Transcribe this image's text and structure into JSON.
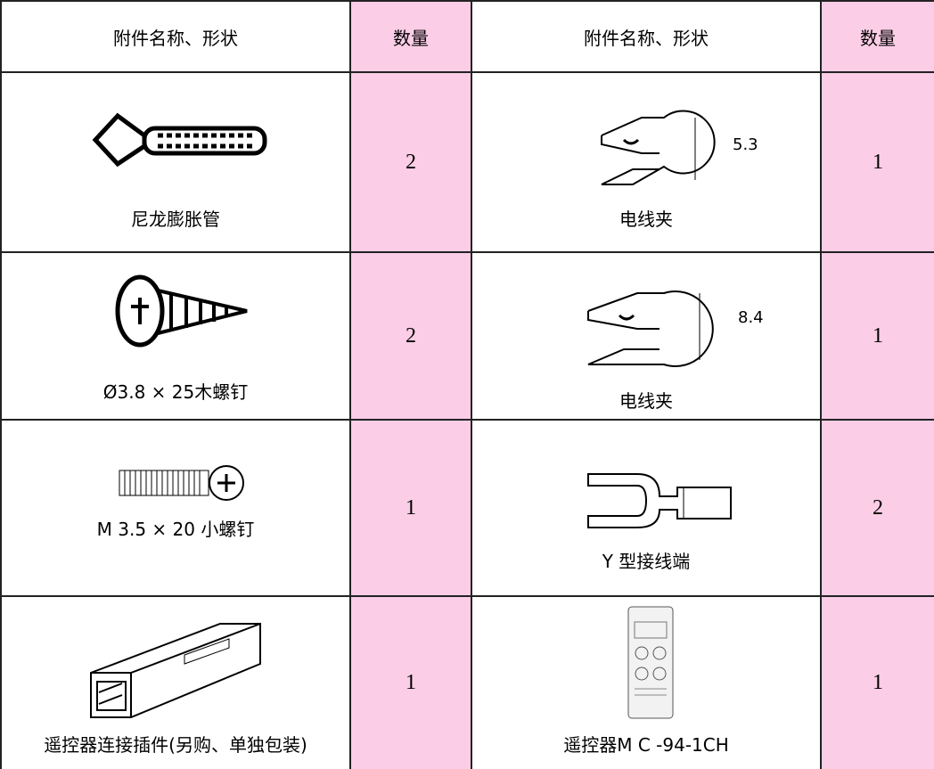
{
  "table": {
    "header": [
      "附件名称、形状",
      "数量",
      "附件名称、形状",
      "数量"
    ],
    "rows": [
      [
        {
          "name": "尼龙膨胀管"
        },
        "2",
        {
          "name": "电线夹",
          "dimension": "5.3"
        },
        "1"
      ],
      [
        {
          "name": "Ø3.8 × 25木螺钉"
        },
        "2",
        {
          "name": "电线夹",
          "dimension": "8.4"
        },
        "1"
      ],
      [
        {
          "name": "M 3.5 × 20 小螺钉"
        },
        "1",
        {
          "name": "Y 型接线端"
        },
        "2"
      ],
      [
        {
          "name": "遥控器连接插件(另购、单独包装)"
        },
        "1",
        {
          "name": "遥控器M C -94-1CH"
        },
        "1"
      ]
    ]
  }
}
